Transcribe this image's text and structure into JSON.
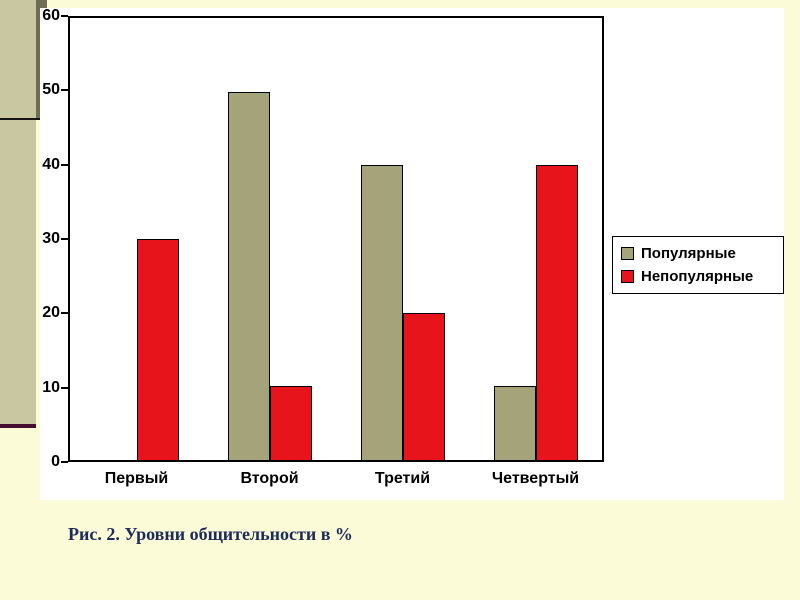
{
  "slide": {
    "caption": "Рис. 2. Уровни общительности в %"
  },
  "chart_data": {
    "type": "bar",
    "categories": [
      "Первый",
      "Второй",
      "Третий",
      "Четвертый"
    ],
    "series": [
      {
        "name": "Популярные",
        "color": "#A4A379",
        "values": [
          0,
          50,
          40,
          10
        ]
      },
      {
        "name": "Непопулярные",
        "color": "#E8141B",
        "values": [
          30,
          10,
          20,
          40
        ]
      }
    ],
    "ylim": [
      0,
      60
    ],
    "yticks": [
      0,
      10,
      20,
      30,
      40,
      50,
      60
    ],
    "grid": false,
    "legend_position": "right"
  }
}
